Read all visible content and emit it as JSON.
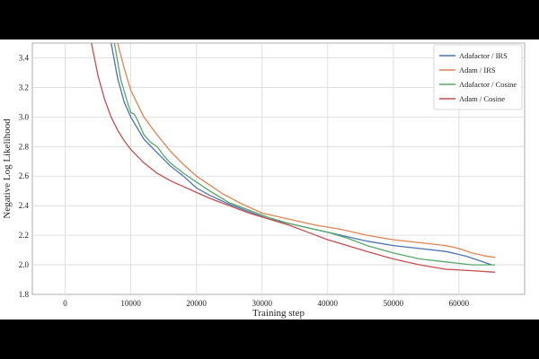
{
  "chart_data": {
    "type": "line",
    "xlabel": "Training step",
    "ylabel": "Negative Log Likelihood",
    "xlim": [
      -5000,
      70000
    ],
    "ylim": [
      1.8,
      3.5
    ],
    "xticks": [
      0,
      10000,
      20000,
      30000,
      40000,
      50000,
      60000
    ],
    "yticks": [
      1.8,
      2.0,
      2.2,
      2.4,
      2.6,
      2.8,
      3.0,
      3.2,
      3.4
    ],
    "grid": true,
    "legend_position": "top-right",
    "series": [
      {
        "name": "Adafactor / IRS",
        "color": "#4c72b0",
        "x": [
          7000,
          8000,
          9000,
          10000,
          12000,
          14000,
          16000,
          18000,
          20000,
          22000,
          25000,
          28000,
          31000,
          34000,
          37000,
          40000,
          43000,
          46000,
          50000,
          54000,
          58000,
          61000,
          63000,
          65000
        ],
        "y": [
          3.5,
          3.26,
          3.1,
          3.0,
          2.85,
          2.76,
          2.67,
          2.6,
          2.52,
          2.47,
          2.41,
          2.36,
          2.31,
          2.28,
          2.25,
          2.22,
          2.19,
          2.16,
          2.13,
          2.11,
          2.09,
          2.06,
          2.03,
          2.0
        ]
      },
      {
        "name": "Adam / IRS",
        "color": "#dd8452",
        "x": [
          8000,
          9000,
          10000,
          12000,
          14000,
          16000,
          18000,
          20000,
          22000,
          24000,
          27000,
          30000,
          34000,
          38000,
          42000,
          46000,
          50000,
          54000,
          58000,
          60000,
          62000,
          64000,
          65500
        ],
        "y": [
          3.5,
          3.33,
          3.18,
          3.0,
          2.88,
          2.77,
          2.68,
          2.6,
          2.54,
          2.48,
          2.41,
          2.35,
          2.31,
          2.27,
          2.24,
          2.2,
          2.17,
          2.15,
          2.13,
          2.11,
          2.08,
          2.06,
          2.05
        ]
      },
      {
        "name": "Adafactor / Cosine",
        "color": "#55a868",
        "x": [
          7500,
          8500,
          9500,
          10000,
          10500,
          11000,
          12000,
          13000,
          14000,
          15000,
          16000,
          18000,
          19000,
          20000,
          22000,
          25000,
          28000,
          31000,
          34000,
          37000,
          40000,
          43000,
          46000,
          50000,
          54000,
          58000,
          62000,
          65500
        ],
        "y": [
          3.5,
          3.25,
          3.1,
          3.03,
          3.02,
          2.98,
          2.88,
          2.83,
          2.8,
          2.74,
          2.69,
          2.62,
          2.59,
          2.56,
          2.5,
          2.42,
          2.37,
          2.32,
          2.28,
          2.25,
          2.22,
          2.18,
          2.13,
          2.08,
          2.04,
          2.02,
          2.0,
          2.0
        ]
      },
      {
        "name": "Adam / Cosine",
        "color": "#c44e52",
        "x": [
          4000,
          5000,
          6000,
          7000,
          8000,
          9000,
          10000,
          12000,
          14000,
          16000,
          18000,
          20000,
          22000,
          25000,
          28000,
          31000,
          34000,
          37000,
          40000,
          43000,
          46000,
          50000,
          54000,
          58000,
          62000,
          65500
        ],
        "y": [
          3.5,
          3.28,
          3.12,
          3.0,
          2.91,
          2.84,
          2.78,
          2.69,
          2.62,
          2.57,
          2.53,
          2.49,
          2.45,
          2.4,
          2.35,
          2.31,
          2.27,
          2.22,
          2.17,
          2.13,
          2.09,
          2.04,
          2.0,
          1.97,
          1.96,
          1.95
        ]
      }
    ]
  }
}
